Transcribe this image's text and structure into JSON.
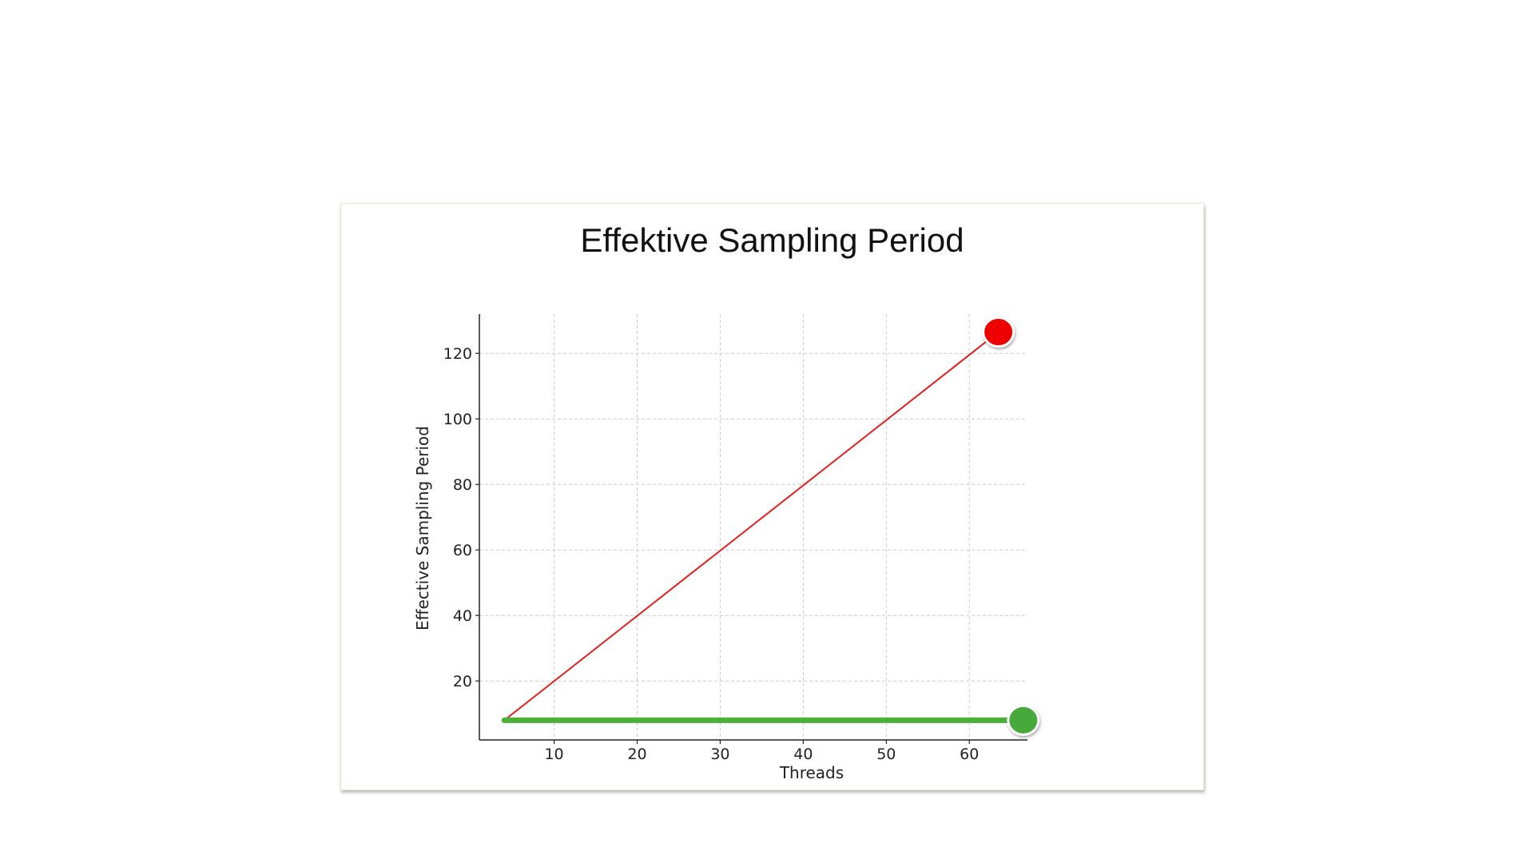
{
  "chart_data": {
    "type": "line",
    "title": "Effektive Sampling Period",
    "xlabel": "Threads",
    "ylabel": "Effective Sampling Period",
    "xlim": [
      1,
      67
    ],
    "ylim": [
      2,
      132
    ],
    "x_ticks": [
      10,
      20,
      30,
      40,
      50,
      60
    ],
    "y_ticks": [
      20,
      40,
      60,
      80,
      100,
      120
    ],
    "grid": true,
    "grid_style": "dashed",
    "series": [
      {
        "color": "#e02020",
        "points": [
          [
            4,
            8
          ],
          [
            63.5,
            126.5
          ]
        ],
        "end_marker_color": "#ee0000"
      },
      {
        "color": "#4caf3a",
        "points": [
          [
            4,
            8
          ],
          [
            66.5,
            8
          ]
        ],
        "end_marker_color": "#46a83a"
      }
    ]
  }
}
